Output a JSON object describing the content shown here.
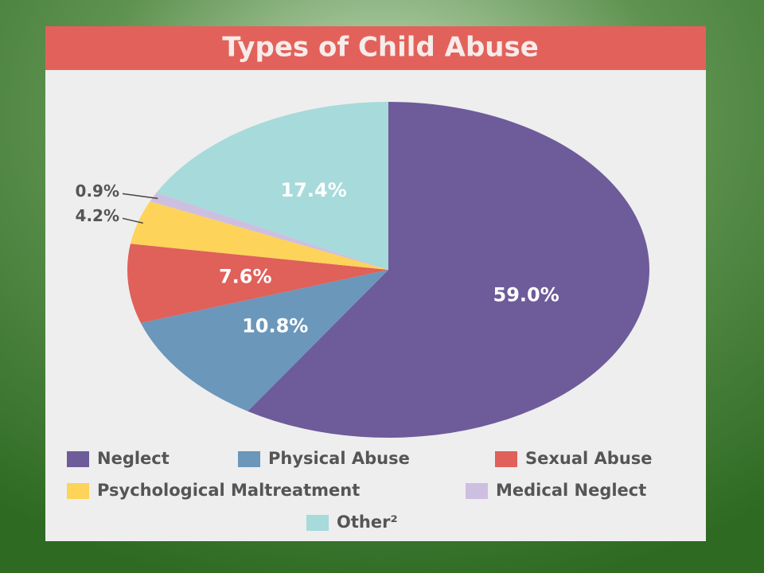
{
  "chart_data": {
    "type": "pie",
    "title": "Types of Child Abuse",
    "categories": [
      "Neglect",
      "Physical Abuse",
      "Sexual Abuse",
      "Psychological Maltreatment",
      "Medical Neglect",
      "Other²"
    ],
    "values": [
      59,
      10.8,
      7.6,
      4.2,
      0.9,
      17.4
    ],
    "value_labels": [
      "59.0%",
      "10.8%",
      "7.6%",
      "4.2%",
      "0.9%",
      "17.4%"
    ],
    "colors": [
      "#6e5b9a",
      "#6b97bb",
      "#e0605a",
      "#fdd35a",
      "#cdbfe0",
      "#a6dadb"
    ],
    "legend": "bottom"
  }
}
